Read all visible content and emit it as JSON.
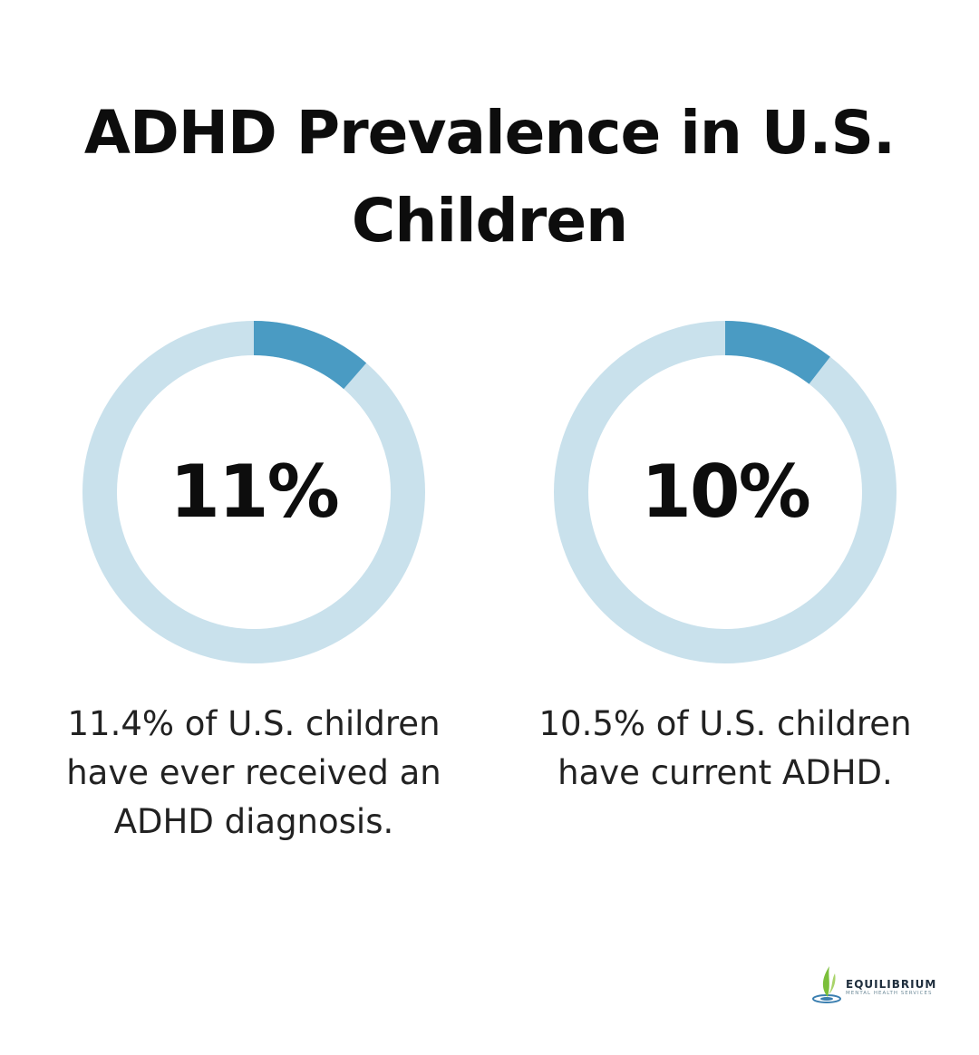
{
  "title": "ADHD Prevalence in U.S. Children",
  "colors": {
    "accent": "#4a9bc3",
    "track": "#c9e1ec",
    "text": "#111111"
  },
  "chart_data": [
    {
      "type": "pie",
      "style": "donut",
      "value": 11.4,
      "max": 100,
      "center_label": "11%",
      "caption": "11.4% of U.S. children have ever received an ADHD diagnosis."
    },
    {
      "type": "pie",
      "style": "donut",
      "value": 10.5,
      "max": 100,
      "center_label": "10%",
      "caption": "10.5% of U.S. children have current ADHD."
    }
  ],
  "logo": {
    "name": "EQUILIBRIUM",
    "tagline": "MENTAL HEALTH SERVICES"
  }
}
